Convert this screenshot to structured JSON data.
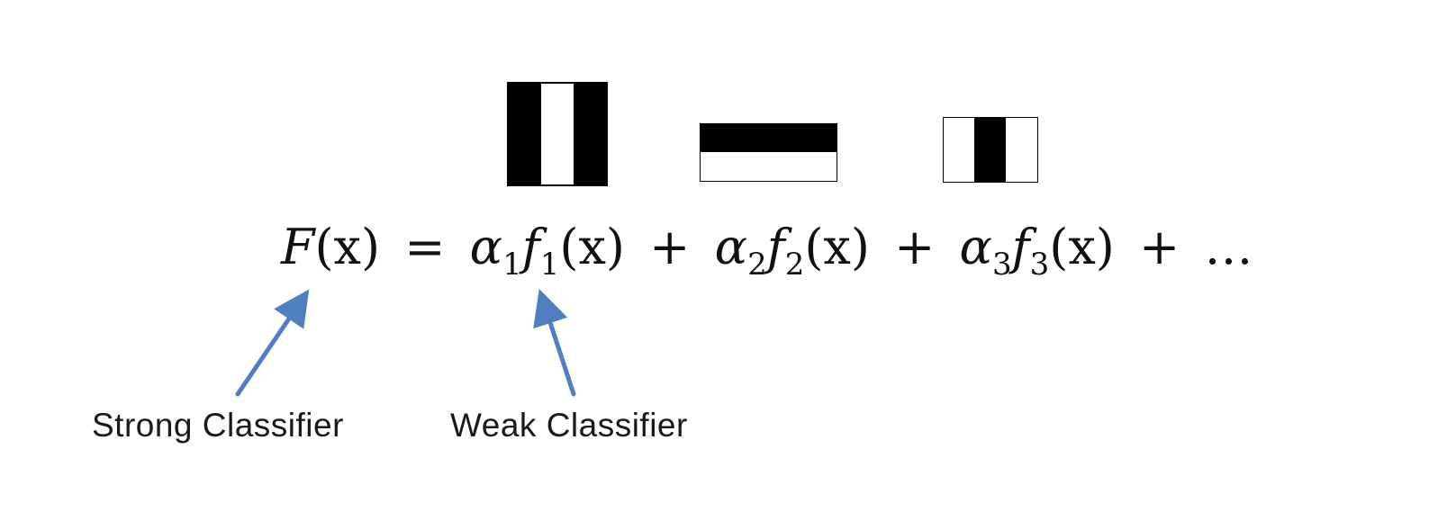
{
  "features": [
    {
      "name": "haar-feature-vertical-three-band",
      "kind": "vertical-three-band",
      "bands": [
        "#000000",
        "#ffffff",
        "#000000"
      ]
    },
    {
      "name": "haar-feature-horizontal-two-band",
      "kind": "horizontal-two-band",
      "bands": [
        "#000000",
        "#ffffff"
      ]
    },
    {
      "name": "haar-feature-vertical-three-band-center-dark",
      "kind": "vertical-three-band",
      "bands": [
        "#ffffff",
        "#000000",
        "#ffffff"
      ]
    }
  ],
  "equation": {
    "lhs_fn": "F",
    "lhs_arg": "(x)",
    "equals": "=",
    "terms": [
      {
        "coef": "α",
        "coef_sub": "1",
        "fn": "f",
        "fn_sub": "1",
        "arg": "(x)"
      },
      {
        "coef": "α",
        "coef_sub": "2",
        "fn": "f",
        "fn_sub": "2",
        "arg": "(x)"
      },
      {
        "coef": "α",
        "coef_sub": "3",
        "fn": "f",
        "fn_sub": "3",
        "arg": "(x)"
      }
    ],
    "plus": "+",
    "ellipsis": "…"
  },
  "labels": {
    "strong": "Strong Classifier",
    "weak": "Weak Classifier"
  },
  "arrow_color": "#4f7fc0"
}
